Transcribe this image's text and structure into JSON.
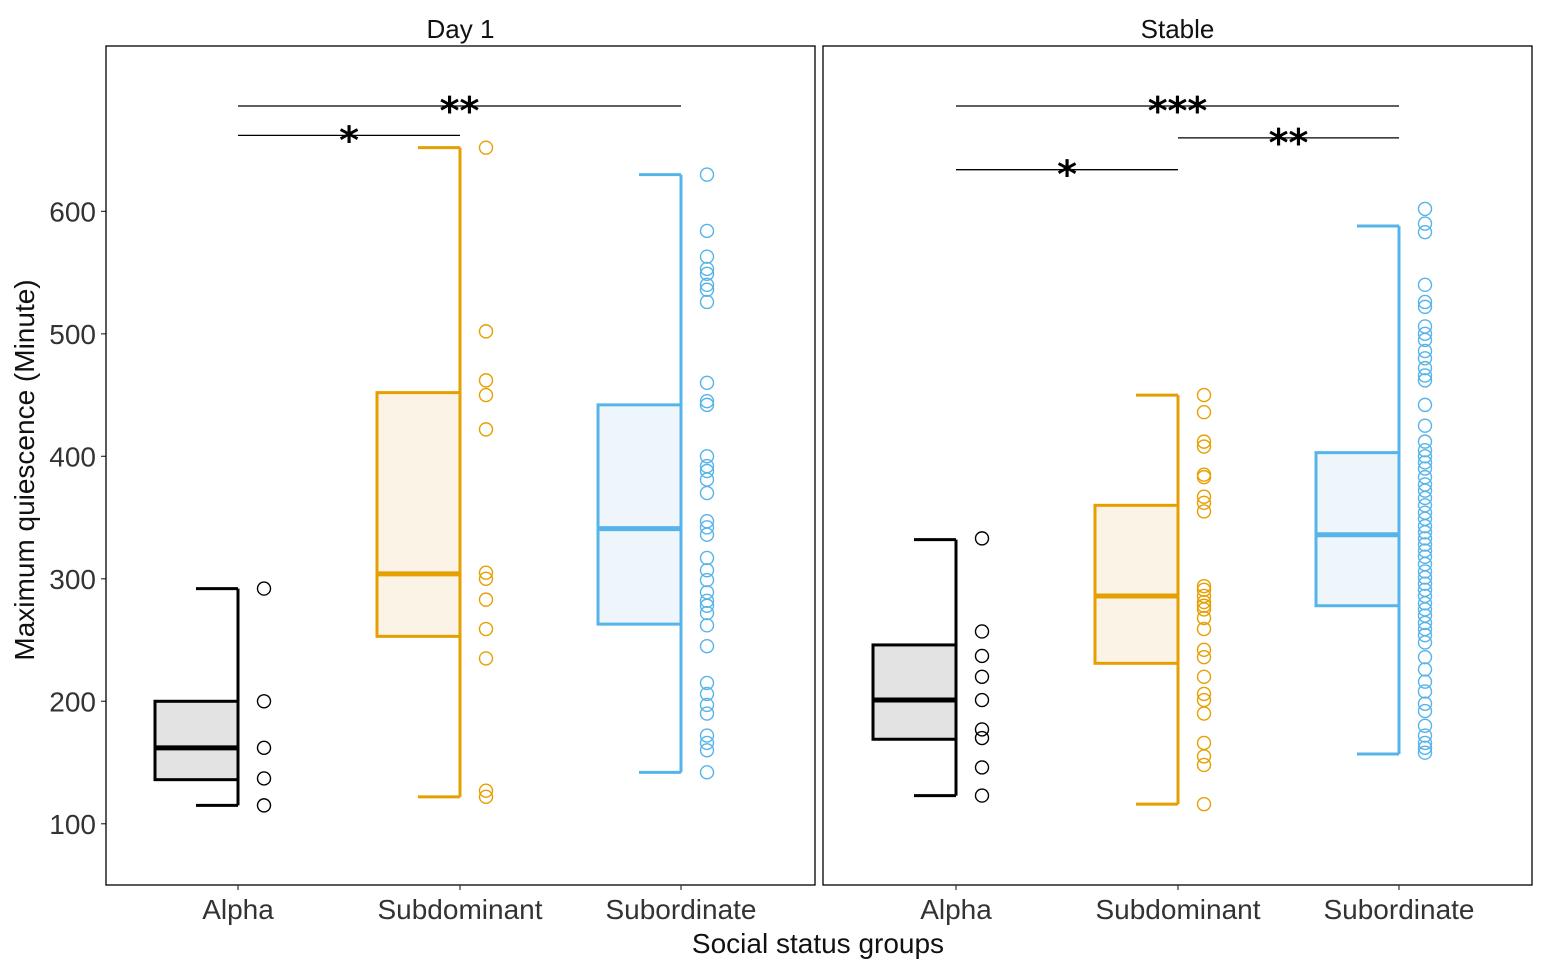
{
  "chart_data": {
    "type": "boxplot",
    "xlabel": "Social status groups",
    "ylabel": "Maximum quiescence (Minute)",
    "ylim": [
      50,
      735
    ],
    "yticks": [
      100,
      200,
      300,
      400,
      500,
      600
    ],
    "categories": [
      "Alpha",
      "Subdominant",
      "Subordinate"
    ],
    "colors": {
      "Alpha": {
        "line": "#000000",
        "fill": "#e3e3e3"
      },
      "Subdominant": {
        "line": "#e69f00",
        "fill": "#fbf4e6"
      },
      "Subordinate": {
        "line": "#56b4e9",
        "fill": "#eef6fc"
      }
    },
    "panels": [
      {
        "title": "Day 1",
        "groups": [
          {
            "name": "Alpha",
            "min": 115,
            "q1": 136,
            "median": 162,
            "q3": 200,
            "max": 292,
            "points": [
              292,
              200,
              162,
              137,
              115
            ]
          },
          {
            "name": "Subdominant",
            "min": 122,
            "q1": 253,
            "median": 304,
            "q3": 452,
            "max": 652,
            "points": [
              652,
              502,
              462,
              450,
              422,
              305,
              300,
              283,
              259,
              235,
              127,
              122
            ]
          },
          {
            "name": "Subordinate",
            "min": 142,
            "q1": 263,
            "median": 341,
            "q3": 442,
            "max": 630,
            "points": [
              630,
              584,
              563,
              553,
              549,
              540,
              536,
              526,
              460,
              445,
              442,
              400,
              392,
              388,
              381,
              370,
              347,
              342,
              336,
              317,
              307,
              299,
              289,
              282,
              278,
              272,
              262,
              245,
              215,
              206,
              197,
              190,
              172,
              166,
              160,
              142
            ]
          }
        ],
        "significance": [
          {
            "from": "Alpha",
            "to": "Subordinate",
            "label": "**",
            "y": 686
          },
          {
            "from": "Alpha",
            "to": "Subdominant",
            "label": "*",
            "y": 662
          }
        ]
      },
      {
        "title": "Stable",
        "groups": [
          {
            "name": "Alpha",
            "min": 123,
            "q1": 169,
            "median": 201,
            "q3": 246,
            "max": 332,
            "points": [
              333,
              257,
              237,
              220,
              201,
              177,
              170,
              146,
              123
            ]
          },
          {
            "name": "Subdominant",
            "min": 116,
            "q1": 231,
            "median": 286,
            "q3": 360,
            "max": 450,
            "points": [
              450,
              436,
              412,
              408,
              385,
              383,
              367,
              362,
              355,
              294,
              291,
              286,
              281,
              278,
              275,
              268,
              259,
              242,
              236,
              220,
              206,
              201,
              190,
              166,
              155,
              148,
              116
            ]
          },
          {
            "name": "Subordinate",
            "min": 157,
            "q1": 278,
            "median": 336,
            "q3": 403,
            "max": 588,
            "points": [
              602,
              590,
              583,
              540,
              526,
              522,
              506,
              500,
              495,
              486,
              480,
              472,
              466,
              462,
              442,
              425,
              412,
              405,
              400,
              395,
              390,
              383,
              377,
              372,
              366,
              360,
              354,
              349,
              343,
              338,
              333,
              328,
              323,
              318,
              312,
              306,
              301,
              296,
              291,
              286,
              280,
              275,
              270,
              264,
              259,
              254,
              248,
              236,
              226,
              216,
              208,
              198,
              192,
              180,
              172,
              166,
              162,
              158
            ]
          }
        ],
        "significance": [
          {
            "from": "Alpha",
            "to": "Subordinate",
            "label": "***",
            "y": 686
          },
          {
            "from": "Subdominant",
            "to": "Subordinate",
            "label": "**",
            "y": 660
          },
          {
            "from": "Alpha",
            "to": "Subdominant",
            "label": "*",
            "y": 634
          }
        ]
      }
    ]
  }
}
